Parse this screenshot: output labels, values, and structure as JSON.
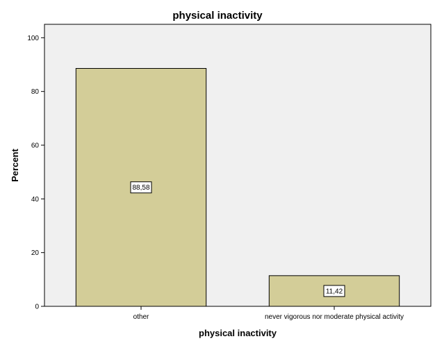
{
  "chart_data": {
    "type": "bar",
    "title": "physical inactivity",
    "xlabel": "physical inactivity",
    "ylabel": "Percent",
    "categories": [
      "other",
      "never vigorous nor moderate physical activity"
    ],
    "values": [
      88.58,
      11.42
    ],
    "data_labels": [
      "88,58",
      "11,42"
    ],
    "ylim": [
      0,
      105
    ],
    "yticks": [
      0,
      20,
      40,
      60,
      80,
      100
    ],
    "grid": false,
    "legend": "none",
    "bar_color": "#d3cd98",
    "bar_edge_color": "#000000",
    "plot_background": "#f0f0f0"
  }
}
